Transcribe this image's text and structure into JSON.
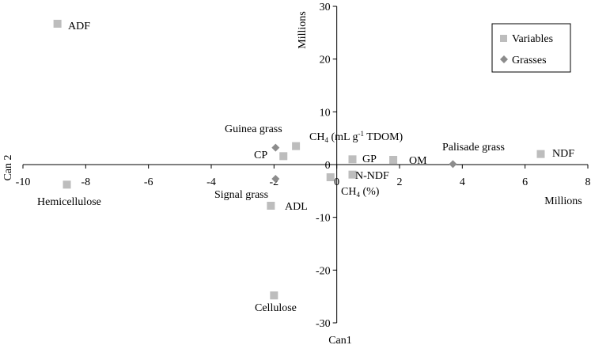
{
  "chart_data": {
    "type": "scatter",
    "xlabel": "Can1",
    "ylabel": "Can 2",
    "x_unit": "Millions",
    "y_unit": "Millions",
    "xlim": [
      -10,
      8
    ],
    "ylim": [
      -30,
      30
    ],
    "x_ticks": [
      -10,
      -8,
      -6,
      -4,
      -2,
      0,
      2,
      4,
      6,
      8
    ],
    "y_ticks": [
      -30,
      -20,
      -10,
      0,
      10,
      20,
      30
    ],
    "grid": false,
    "legend_position": "top-right",
    "series": [
      {
        "name": "Variables",
        "marker": "square",
        "color": "#bdbdbd",
        "points": [
          {
            "label": "ADF",
            "x": -8.9,
            "y": 26.7
          },
          {
            "label": "Hemicellulose",
            "x": -8.6,
            "y": -3.8
          },
          {
            "label": "CH4 (mL g-1 TDOM)",
            "x": -1.3,
            "y": 3.5
          },
          {
            "label": "CP",
            "x": -1.7,
            "y": 1.6
          },
          {
            "label": "GP",
            "x": 0.5,
            "y": 1.0
          },
          {
            "label": "OM",
            "x": 1.8,
            "y": 0.9
          },
          {
            "label": "NDF",
            "x": 6.5,
            "y": 2.0
          },
          {
            "label": "N-NDF",
            "x": 0.5,
            "y": -1.9
          },
          {
            "label": "CH4 (%)",
            "x": -0.2,
            "y": -2.4
          },
          {
            "label": "ADL",
            "x": -2.1,
            "y": -7.8
          },
          {
            "label": "Cellulose",
            "x": -2.0,
            "y": -24.8
          }
        ]
      },
      {
        "name": "Grasses",
        "marker": "diamond",
        "color": "#8c8c8c",
        "points": [
          {
            "label": "Guinea grass",
            "x": -1.95,
            "y": 3.2
          },
          {
            "label": "Signal grass",
            "x": -1.95,
            "y": -2.7
          },
          {
            "label": "Palisade grass",
            "x": 3.7,
            "y": 0.1
          }
        ]
      }
    ]
  },
  "labels": {
    "ADF": "ADF",
    "Hemicellulose": "Hemicellulose",
    "CH4_mL": "CH",
    "CH4_mL_sub": "4",
    "CH4_mL_rest": " (mL g",
    "CH4_mL_sup": "-1",
    "CH4_mL_end": " TDOM)",
    "CP": "CP",
    "GP": "GP",
    "OM": "OM",
    "NDF": "NDF",
    "NNDF": "N-NDF",
    "CH4_pct": "CH",
    "CH4_pct_sub": "4",
    "CH4_pct_end": " (%)",
    "ADL": "ADL",
    "Cellulose": "Cellulose",
    "Guinea": "Guinea grass",
    "Signal": "Signal grass",
    "Palisade": "Palisade grass"
  }
}
